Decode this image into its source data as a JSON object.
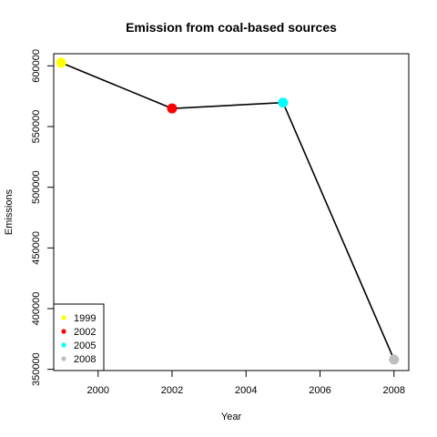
{
  "chart_data": {
    "type": "line",
    "title": "Emission from coal-based sources",
    "xlabel": "Year",
    "ylabel": "Emissions",
    "x": [
      1999,
      2002,
      2005,
      2008
    ],
    "y": [
      602600,
      564900,
      569700,
      358100
    ],
    "point_colors": [
      "#ffff00",
      "#ff0000",
      "#00ffff",
      "#bebebe"
    ],
    "line_color": "#000000",
    "xlim": [
      1998.8,
      2008.4
    ],
    "ylim": [
      349000,
      610000
    ],
    "xticks": [
      2000,
      2002,
      2004,
      2006,
      2008
    ],
    "yticks": [
      350000,
      400000,
      450000,
      500000,
      550000,
      600000
    ],
    "grid": false,
    "legend": {
      "position": "bottom-left",
      "entries": [
        {
          "label": "1999",
          "color": "#ffff00"
        },
        {
          "label": "2002",
          "color": "#ff0000"
        },
        {
          "label": "2005",
          "color": "#00ffff"
        },
        {
          "label": "2008",
          "color": "#bebebe"
        }
      ]
    }
  }
}
